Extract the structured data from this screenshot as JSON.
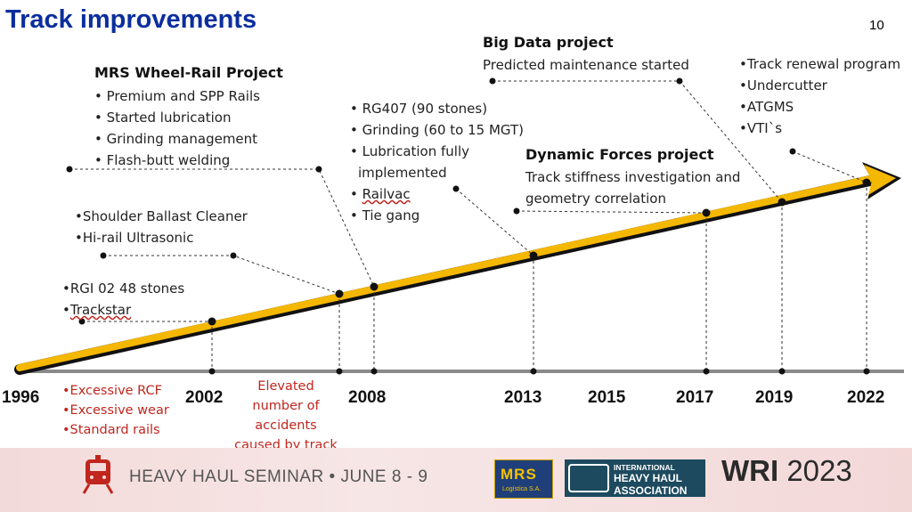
{
  "slide": {
    "title": "Track improvements",
    "page_number": "10"
  },
  "blocks": {
    "mrs": {
      "heading": "MRS Wheel-Rail Project",
      "items": [
        "• Premium and SPP Rails",
        "• Started lubrication",
        "• Grinding management",
        "• Flash-butt welding"
      ]
    },
    "shoulder": {
      "items": [
        "•Shoulder Ballast Cleaner",
        "•Hi-rail Ultrasonic"
      ]
    },
    "rgi": {
      "items": [
        "•RGI 02 48 stones",
        "•",
        "Trackstar"
      ]
    },
    "rg407": {
      "items": [
        "• RG407 (90 stones)",
        "• Grinding (60 to 15 MGT)",
        "• Lubrication fully",
        "implemented",
        "• ",
        "Railvac",
        "• Tie gang"
      ]
    },
    "bigdata": {
      "heading": "Big Data project",
      "line": "Predicted maintenance started"
    },
    "dynamic": {
      "heading": "Dynamic Forces project",
      "lines": [
        "Track stiffness investigation and",
        "geometry correlation"
      ]
    },
    "renewal": {
      "items": [
        "•Track renewal program",
        "•Undercutter",
        "•ATGMS",
        "•VTI`s"
      ]
    }
  },
  "issues_1996": [
    "•Excessive RCF",
    "•Excessive wear",
    "•Standard rails"
  ],
  "issues_2002": [
    "Elevated",
    "number of",
    "accidents",
    "caused by track"
  ],
  "years": [
    "1996",
    "2002",
    "2008",
    "2013",
    "2015",
    "2017",
    "2019",
    "2022"
  ],
  "footer": {
    "seminar": "HEAVY HAUL SEMINAR • JUNE 8 - 9",
    "mrs_logo": "MRS",
    "mrs_sub": "Logística S.A.",
    "ihha_line1": "INTERNATIONAL",
    "ihha_line2": "HEAVY HAUL",
    "ihha_line3": "ASSOCIATION",
    "wri_bold": "WRI",
    "wri_year": "2023"
  },
  "colors": {
    "title": "#0b2e9e",
    "arrow": "#f5b800",
    "issues": "#c0261e",
    "axis": "#808080"
  },
  "icons": [
    "train-icon",
    "timeline-arrow-icon"
  ]
}
